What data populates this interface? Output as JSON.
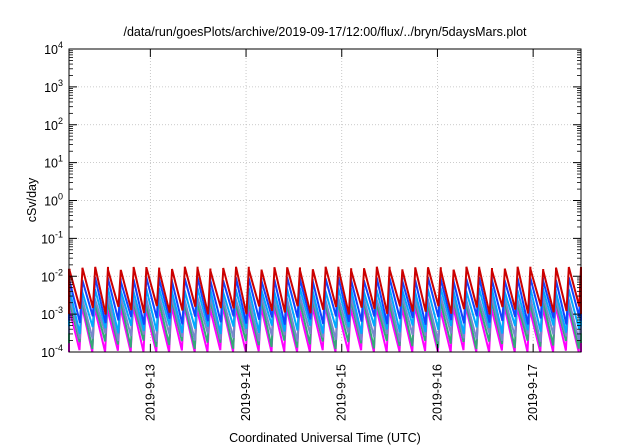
{
  "chart_data": {
    "type": "line",
    "title": "/data/run/goesPlots/archive/2019-09-17/12:00/flux/../bryn/5daysMars.plot",
    "xlabel": "Coordinated Universal Time (UTC)",
    "ylabel": "cSv/day",
    "yscale": "log",
    "ylim": [
      0.0001,
      10000
    ],
    "y_ticks": [
      {
        "value": 0.0001,
        "base": "10",
        "exp": "-4"
      },
      {
        "value": 0.001,
        "base": "10",
        "exp": "-3"
      },
      {
        "value": 0.01,
        "base": "10",
        "exp": "-2"
      },
      {
        "value": 0.1,
        "base": "10",
        "exp": "-1"
      },
      {
        "value": 1,
        "base": "10",
        "exp": "0"
      },
      {
        "value": 10,
        "base": "10",
        "exp": "1"
      },
      {
        "value": 100,
        "base": "10",
        "exp": "2"
      },
      {
        "value": 1000,
        "base": "10",
        "exp": "3"
      },
      {
        "value": 10000,
        "base": "10",
        "exp": "4"
      }
    ],
    "xlim": [
      0,
      5.35
    ],
    "x_ticks": [
      {
        "value": 0.85,
        "label": "2019-9-13"
      },
      {
        "value": 1.85,
        "label": "2019-9-14"
      },
      {
        "value": 2.85,
        "label": "2019-9-15"
      },
      {
        "value": 3.85,
        "label": "2019-9-16"
      },
      {
        "value": 4.85,
        "label": "2019-9-17"
      }
    ],
    "grid": true,
    "series_style": {
      "colors": [
        "#ff00ff",
        "#33aa77",
        "#7788cc",
        "#00aaff",
        "#1144ff",
        "#cc0000"
      ],
      "peaks": [
        0.0015,
        0.0022,
        0.0028,
        0.0045,
        0.0085,
        0.016
      ],
      "troughs": [
        9e-05,
        0.00016,
        0.00025,
        0.0004,
        0.0007,
        0.0013
      ],
      "phase": [
        0.0,
        0.01,
        0.02,
        0.03,
        0.04,
        0.05
      ]
    },
    "cycles": 40
  }
}
